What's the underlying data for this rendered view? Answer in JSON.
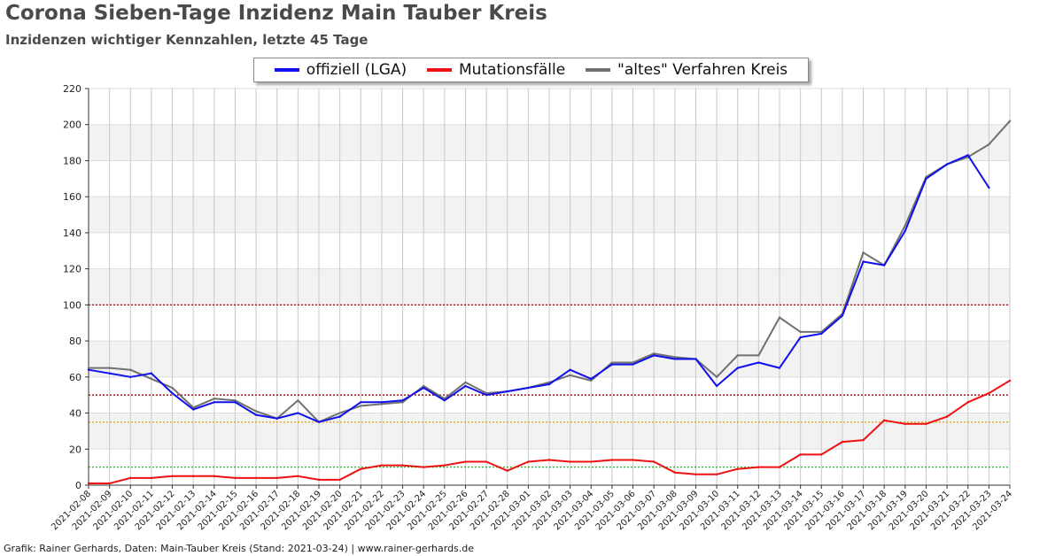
{
  "title": "Corona Sieben-Tage Inzidenz Main Tauber Kreis",
  "subtitle": "Inzidenzen wichtiger Kennzahlen, letzte 45 Tage",
  "footer": "Grafik: Rainer Gerhards, Daten: Main-Tauber Kreis (Stand: 2021-03-24) | www.rainer-gerhards.de",
  "legend": [
    {
      "label": "offiziell (LGA)",
      "color": "#1010ee"
    },
    {
      "label": "Mutationsfälle",
      "color": "#ee1111"
    },
    {
      "label": "\"altes\" Verfahren Kreis",
      "color": "#707070"
    }
  ],
  "chart_data": {
    "type": "line",
    "categories": [
      "2021-02-08",
      "2021-02-09",
      "2021-02-10",
      "2021-02-11",
      "2021-02-12",
      "2021-02-13",
      "2021-02-14",
      "2021-02-15",
      "2021-02-16",
      "2021-02-17",
      "2021-02-18",
      "2021-02-19",
      "2021-02-20",
      "2021-02-21",
      "2021-02-22",
      "2021-02-23",
      "2021-02-24",
      "2021-02-25",
      "2021-02-26",
      "2021-02-27",
      "2021-02-28",
      "2021-03-01",
      "2021-03-02",
      "2021-03-03",
      "2021-03-04",
      "2021-03-05",
      "2021-03-06",
      "2021-03-07",
      "2021-03-08",
      "2021-03-09",
      "2021-03-10",
      "2021-03-11",
      "2021-03-12",
      "2021-03-13",
      "2021-03-14",
      "2021-03-15",
      "2021-03-16",
      "2021-03-17",
      "2021-03-18",
      "2021-03-19",
      "2021-03-20",
      "2021-03-21",
      "2021-03-22",
      "2021-03-23",
      "2021-03-24"
    ],
    "ylim": [
      0,
      220
    ],
    "yticks": [
      0,
      20,
      40,
      60,
      80,
      100,
      120,
      140,
      160,
      180,
      200,
      220
    ],
    "grid": true,
    "reference_lines": [
      {
        "y": 100,
        "color": "#aa0000"
      },
      {
        "y": 50,
        "color": "#aa0000"
      },
      {
        "y": 35,
        "color": "#e0a000"
      },
      {
        "y": 10,
        "color": "#22bb22"
      }
    ],
    "series": [
      {
        "name": "\"altes\" Verfahren Kreis",
        "color": "#707070",
        "values": [
          65,
          65,
          64,
          59,
          54,
          43,
          48,
          47,
          41,
          37,
          47,
          35,
          40,
          44,
          45,
          46,
          55,
          48,
          57,
          51,
          52,
          54,
          57,
          61,
          58,
          68,
          68,
          73,
          71,
          70,
          60,
          72,
          72,
          93,
          85,
          85,
          95,
          129,
          122,
          144,
          171,
          178,
          182,
          189,
          202
        ]
      },
      {
        "name": "offiziell (LGA)",
        "color": "#1010ee",
        "values": [
          64,
          62,
          60,
          62,
          51,
          42,
          46,
          46,
          39,
          37,
          40,
          35,
          38,
          46,
          46,
          47,
          54,
          47,
          55,
          50,
          52,
          54,
          56,
          64,
          59,
          67,
          67,
          72,
          70,
          70,
          55,
          65,
          68,
          65,
          82,
          84,
          94,
          124,
          122,
          141,
          170,
          178,
          183,
          165,
          null
        ]
      },
      {
        "name": "Mutationsfälle",
        "color": "#ee1111",
        "values": [
          1,
          1,
          4,
          4,
          5,
          5,
          5,
          4,
          4,
          4,
          5,
          3,
          3,
          9,
          11,
          11,
          10,
          11,
          13,
          13,
          8,
          13,
          14,
          13,
          13,
          14,
          14,
          13,
          7,
          6,
          6,
          9,
          10,
          10,
          17,
          17,
          24,
          25,
          36,
          34,
          34,
          38,
          46,
          51,
          58
        ]
      }
    ]
  }
}
